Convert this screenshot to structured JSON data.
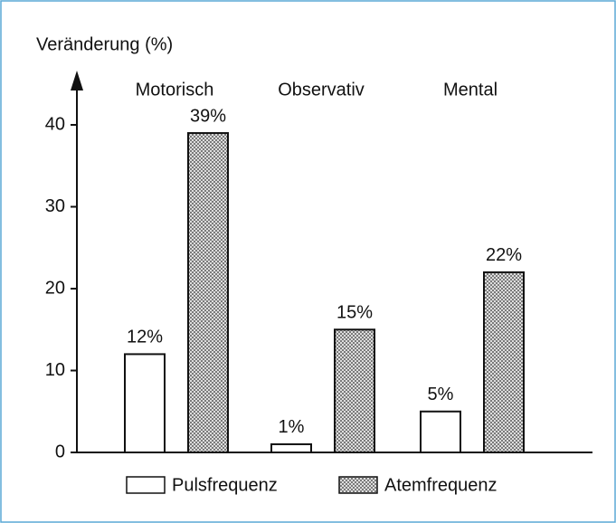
{
  "chart_data": {
    "type": "bar",
    "y_axis_label": "Veränderung (%)",
    "categories": [
      "Motorisch",
      "Observativ",
      "Mental"
    ],
    "series": [
      {
        "name": "Pulsfrequenz",
        "color": "#ffffff",
        "values": [
          12,
          1,
          5
        ],
        "value_labels": [
          "12%",
          "1%",
          "5%"
        ]
      },
      {
        "name": "Atemfrequenz",
        "color": "dotted",
        "values": [
          39,
          15,
          22
        ],
        "value_labels": [
          "39%",
          "15%",
          "22%"
        ]
      }
    ],
    "ylim": [
      0,
      40
    ],
    "yticks": [
      0,
      10,
      20,
      30,
      40
    ]
  }
}
